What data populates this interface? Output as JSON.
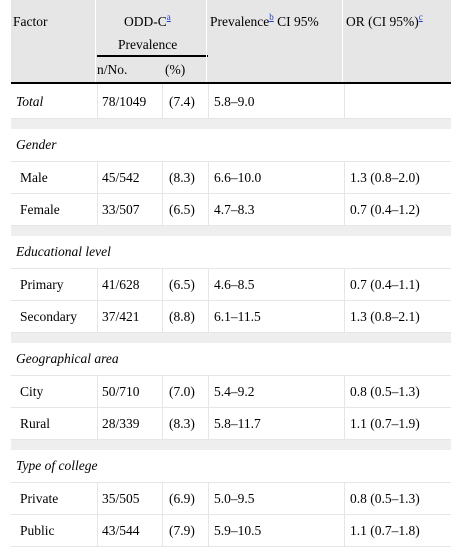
{
  "header": {
    "factor": "Factor",
    "odd_c": "ODD-C",
    "odd_c_sup": "a",
    "prevalence_group": "Prevalence",
    "prevalence_ci": "Prevalence",
    "prevalence_ci_sup": "b",
    "prevalence_ci_suffix": " CI 95%",
    "or": "OR (CI 95%)",
    "or_sup": "c",
    "n_no": "n/No.",
    "pct": "(%)"
  },
  "total": {
    "label": "Total",
    "n": "78/1049",
    "pct": "(7.4)",
    "ci": "5.8–9.0",
    "or": ""
  },
  "sections": [
    {
      "title": "Gender",
      "rows": [
        {
          "label": "Male",
          "n": "45/542",
          "pct": "(8.3)",
          "ci": "6.6–10.0",
          "or": "1.3 (0.8–2.0)"
        },
        {
          "label": "Female",
          "n": "33/507",
          "pct": "(6.5)",
          "ci": "4.7–8.3",
          "or": "0.7 (0.4–1.2)"
        }
      ]
    },
    {
      "title": "Educational level",
      "rows": [
        {
          "label": "Primary",
          "n": "41/628",
          "pct": "(6.5)",
          "ci": "4.6–8.5",
          "or": "0.7 (0.4–1.1)"
        },
        {
          "label": "Secondary",
          "n": "37/421",
          "pct": "(8.8)",
          "ci": "6.1–11.5",
          "or": "1.3 (0.8–2.1)"
        }
      ]
    },
    {
      "title": "Geographical area",
      "rows": [
        {
          "label": "City",
          "n": "50/710",
          "pct": "(7.0)",
          "ci": "5.4–9.2",
          "or": "0.8 (0.5–1.3)"
        },
        {
          "label": "Rural",
          "n": "28/339",
          "pct": "(8.3)",
          "ci": "5.8–11.7",
          "or": "1.1 (0.7–1.9)"
        }
      ]
    },
    {
      "title": "Type of college",
      "rows": [
        {
          "label": "Private",
          "n": "35/505",
          "pct": "(6.9)",
          "ci": "5.0–9.5",
          "or": "0.8 (0.5–1.3)"
        },
        {
          "label": "Public",
          "n": "43/544",
          "pct": "(7.9)",
          "ci": "5.9–10.5",
          "or": "1.1 (0.7–1.8)"
        }
      ]
    }
  ]
}
